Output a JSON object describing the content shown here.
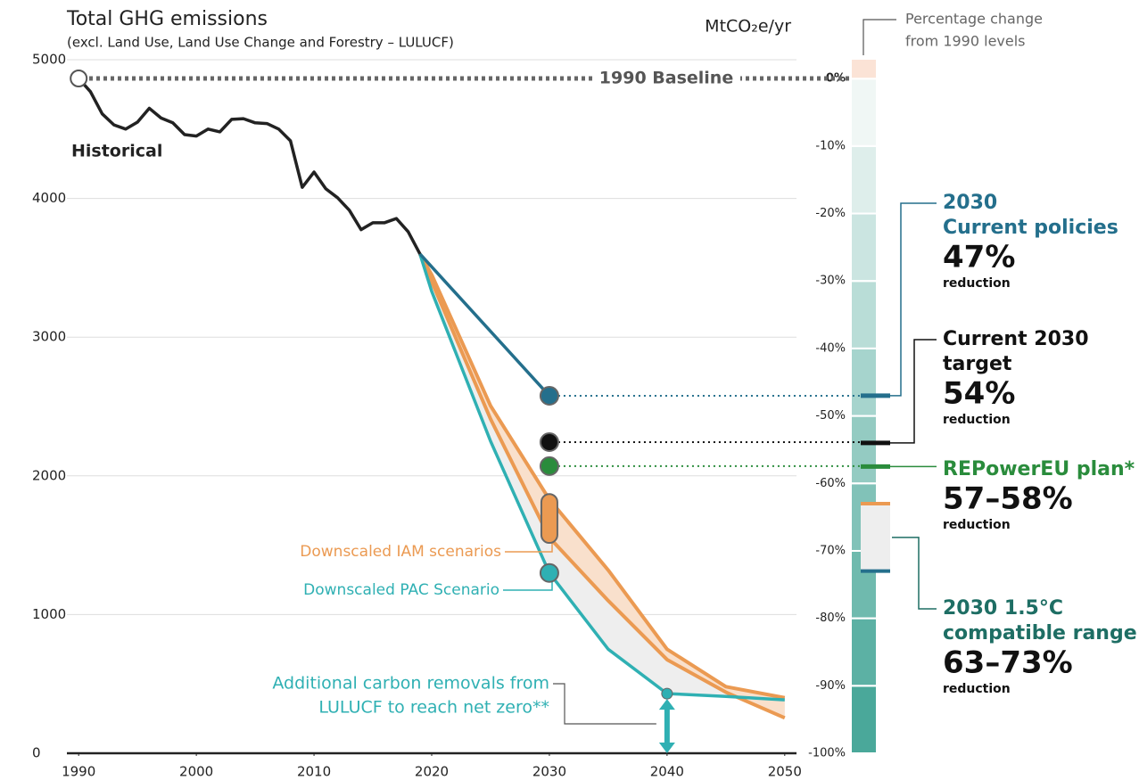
{
  "chart_data": {
    "type": "line",
    "title": "Total GHG emissions",
    "subtitle": "(excl. Land Use, Land Use Change and Forestry – LULUCF)",
    "unit": "MtCO₂e/yr",
    "y2_label": [
      "Percentage change",
      "from 1990 levels"
    ],
    "xlim": [
      1989,
      2051
    ],
    "xticks": [
      1990,
      2000,
      2010,
      2020,
      2030,
      2040,
      2050
    ],
    "ylim": [
      0,
      5000
    ],
    "yticks": [
      0,
      1000,
      2000,
      3000,
      4000,
      5000
    ],
    "y2lim": [
      -100,
      2.8
    ],
    "y2ticks": [
      {
        "value": 0,
        "label": "0%"
      },
      {
        "value": -10,
        "label": "-10%"
      },
      {
        "value": -20,
        "label": "-20%"
      },
      {
        "value": -30,
        "label": "-30%"
      },
      {
        "value": -40,
        "label": "-40%"
      },
      {
        "value": -50,
        "label": "-50%"
      },
      {
        "value": -60,
        "label": "-60%"
      },
      {
        "value": -70,
        "label": "-70%"
      },
      {
        "value": -80,
        "label": "-80%"
      },
      {
        "value": -90,
        "label": "-90%"
      },
      {
        "value": -100,
        "label": "-100%"
      }
    ],
    "grid": true,
    "baseline": {
      "label": "1990 Baseline",
      "value": 4865
    },
    "series": [
      {
        "name": "Historical",
        "color": "#222222",
        "x": [
          1990,
          1991,
          1992,
          1993,
          1994,
          1995,
          1996,
          1997,
          1998,
          1999,
          2000,
          2001,
          2002,
          2003,
          2004,
          2005,
          2006,
          2007,
          2008,
          2009,
          2010,
          2011,
          2012,
          2013,
          2014,
          2015,
          2016,
          2017,
          2018,
          2019
        ],
        "values": [
          4865,
          4770,
          4610,
          4530,
          4500,
          4550,
          4650,
          4580,
          4545,
          4460,
          4450,
          4500,
          4480,
          4570,
          4575,
          4545,
          4540,
          4500,
          4415,
          4080,
          4190,
          4070,
          4005,
          3915,
          3775,
          3825,
          3825,
          3855,
          3760,
          3600
        ]
      },
      {
        "color": "#246f8c",
        "x": [
          2019,
          2030
        ],
        "values": [
          3600,
          2577
        ]
      },
      {
        "name": "Downscaled IAM scenarios",
        "color": "#eb9a52",
        "x": [
          2019,
          2020,
          2025,
          2030,
          2035,
          2040,
          2045,
          2050
        ],
        "values": [
          3600,
          3450,
          2505,
          1830,
          1320,
          750,
          480,
          400
        ],
        "lower": [
          3600,
          3400,
          2410,
          1555,
          1100,
          675,
          440,
          255
        ]
      },
      {
        "name": "Downscaled PAC Scenario",
        "color": "#2fb0b3",
        "x": [
          2019,
          2020,
          2025,
          2030,
          2035,
          2040,
          2045,
          2050
        ],
        "values": [
          3600,
          3330,
          2250,
          1300,
          750,
          430,
          410,
          385
        ]
      }
    ],
    "points": [
      {
        "x": 2030,
        "values": [
          2577
        ],
        "color": "#246f8c"
      },
      {
        "x": 2030,
        "values": [
          2243
        ],
        "color": "#111111"
      },
      {
        "x": 2030,
        "values": [
          2070
        ],
        "color": "#2a8c3c"
      },
      {
        "x": 2030,
        "values": [
          1830,
          1555
        ],
        "color": "#eb9a52"
      },
      {
        "x": 2030,
        "values": [
          1300
        ],
        "color": "#2fb0b3"
      }
    ],
    "removals": {
      "label": [
        "Additional carbon removals from",
        "LULUCF to reach net zero**"
      ],
      "x": 2040,
      "values": [
        430,
        0
      ],
      "color": "#2fb0b3"
    },
    "callouts": [
      {
        "lines": [
          "2030",
          "Current policies"
        ],
        "value_label": "47%",
        "values": [
          -47
        ],
        "note": "reduction",
        "color": "#246f8c"
      },
      {
        "lines": [
          "Current 2030",
          "target"
        ],
        "value_label": "54%",
        "values": [
          -54
        ],
        "note": "reduction",
        "color": "#111111"
      },
      {
        "lines": [
          "REPowerEU plan*"
        ],
        "value_label": "57–58%",
        "values": [
          -57,
          -58
        ],
        "note": "reduction",
        "color": "#2a8c3c"
      },
      {
        "lines": [
          "2030 1.5°C",
          "compatible range"
        ],
        "value_label": "63–73%",
        "values": [
          -63,
          -73
        ],
        "note": "reduction",
        "color": "#1e6e64"
      }
    ]
  }
}
